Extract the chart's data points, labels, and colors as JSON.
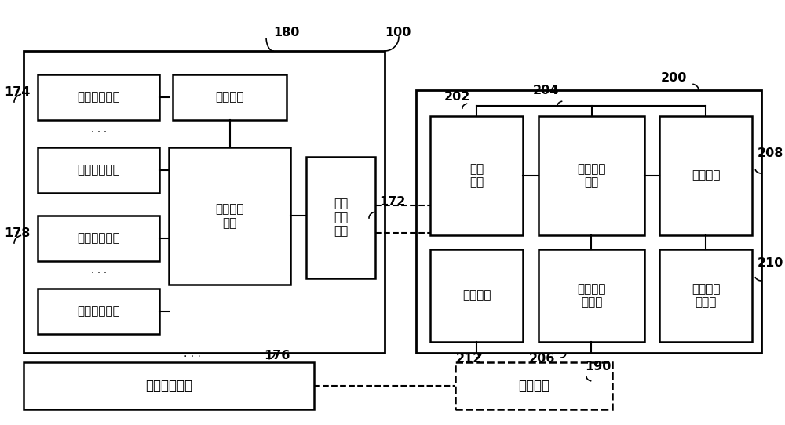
{
  "bg_color": "#ffffff",
  "lc": "#000000",
  "labels": {
    "env_monitor_1": "环境监测设备",
    "env_monitor_2": "环境监测设备",
    "env_adjust_1": "环境调节设备",
    "env_adjust_2": "环境调节设备",
    "local_ctrl": "本地控制\n模块",
    "local_comm": "本地\n通信\n模块",
    "drug_system": "药物调配系统",
    "position": "定位设备",
    "comm_module": "通信\n模块",
    "data_proc": "数据处理\n模块",
    "eval_module": "评估模块",
    "storage": "存储模块",
    "compare_db": "比较规则\n数据库",
    "eval_db": "评估规则\n数据库",
    "terminal": "终端设备"
  }
}
